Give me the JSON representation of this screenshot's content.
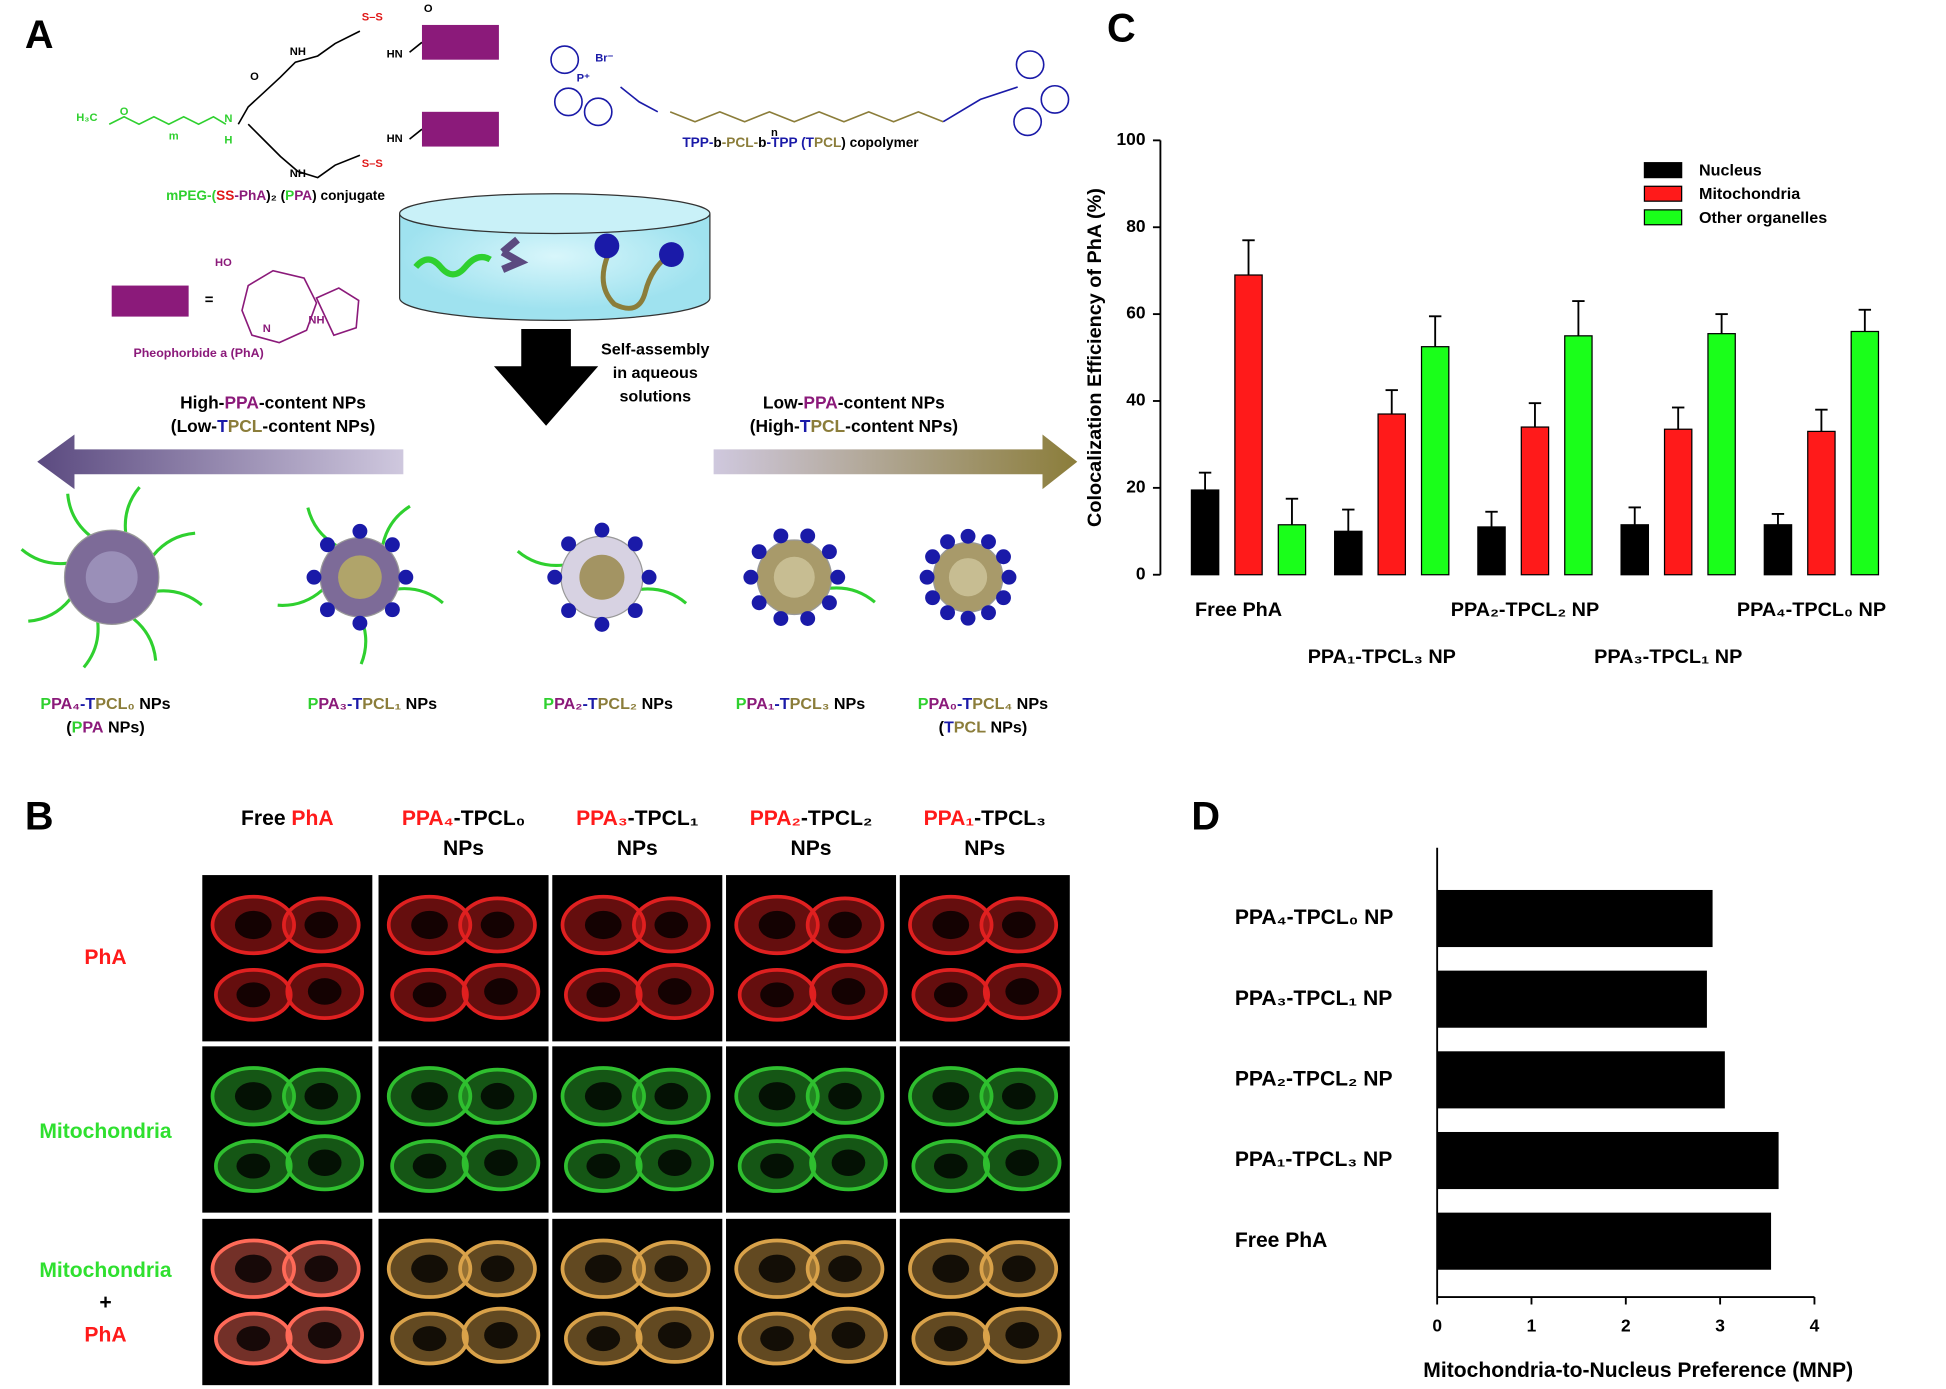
{
  "panel_labels": [
    "A",
    "B",
    "C",
    "D"
  ],
  "panel_a": {
    "ppa_conjugate": [
      {
        "text": "mPEG-(",
        "color": "#2fd02f"
      },
      {
        "text": "SS",
        "color": "#e01818"
      },
      {
        "text": "-PhA",
        "color": "#8b1a7a"
      },
      {
        "text": ")₂ (",
        "color": "#000000"
      },
      {
        "text": "P",
        "color": "#2fd02f"
      },
      {
        "text": "PA",
        "color": "#8b1a7a"
      },
      {
        "text": ") conjugate",
        "color": "#000000"
      }
    ],
    "tpcl_copolymer": [
      {
        "text": "TPP-",
        "color": "#1a1aa8"
      },
      {
        "text": "b",
        "color": "#000000"
      },
      {
        "text": "-PCL-",
        "color": "#8b7d3a"
      },
      {
        "text": "b",
        "color": "#000000"
      },
      {
        "text": "-TPP (",
        "color": "#1a1aa8"
      },
      {
        "text": "T",
        "color": "#1a1aa8"
      },
      {
        "text": "PCL",
        "color": "#8b7d3a"
      },
      {
        "text": ") copolymer",
        "color": "#000000"
      }
    ],
    "pha_name": "Pheophorbide a (PhA)",
    "equals": "=",
    "assembly": [
      "Self-assembly",
      "in aqueous",
      "solutions"
    ],
    "high_ppa": [
      [
        {
          "text": "High-",
          "color": "#000000"
        },
        {
          "text": "PPA",
          "color": "#8b1a7a"
        },
        {
          "text": "-content NPs",
          "color": "#000000"
        }
      ],
      [
        {
          "text": "(Low-",
          "color": "#000000"
        },
        {
          "text": "T",
          "color": "#1a1aa8"
        },
        {
          "text": "PCL",
          "color": "#8b7d3a"
        },
        {
          "text": "-content NPs)",
          "color": "#000000"
        }
      ]
    ],
    "low_ppa": [
      [
        {
          "text": "Low-",
          "color": "#000000"
        },
        {
          "text": "PPA",
          "color": "#8b1a7a"
        },
        {
          "text": "-content NPs",
          "color": "#000000"
        }
      ],
      [
        {
          "text": "(High-",
          "color": "#000000"
        },
        {
          "text": "T",
          "color": "#1a1aa8"
        },
        {
          "text": "PCL",
          "color": "#8b7d3a"
        },
        {
          "text": "-content NPs)",
          "color": "#000000"
        }
      ]
    ],
    "nanoparticles": [
      [
        [
          {
            "text": "P",
            "color": "#2fd02f"
          },
          {
            "text": "PA₄",
            "color": "#8b1a7a"
          },
          {
            "text": "-T",
            "color": "#1a1aa8"
          },
          {
            "text": "PCL₀",
            "color": "#8b7d3a"
          },
          {
            "text": " NPs",
            "color": "#000000"
          }
        ],
        [
          {
            "text": "(",
            "color": "#000000"
          },
          {
            "text": "P",
            "color": "#2fd02f"
          },
          {
            "text": "PA",
            "color": "#8b1a7a"
          },
          {
            "text": " NPs)",
            "color": "#000000"
          }
        ]
      ],
      [
        [
          {
            "text": "P",
            "color": "#2fd02f"
          },
          {
            "text": "PA₃",
            "color": "#8b1a7a"
          },
          {
            "text": "-T",
            "color": "#1a1aa8"
          },
          {
            "text": "PCL₁",
            "color": "#8b7d3a"
          },
          {
            "text": " NPs",
            "color": "#000000"
          }
        ]
      ],
      [
        [
          {
            "text": "P",
            "color": "#2fd02f"
          },
          {
            "text": "PA₂",
            "color": "#8b1a7a"
          },
          {
            "text": "-T",
            "color": "#1a1aa8"
          },
          {
            "text": "PCL₂",
            "color": "#8b7d3a"
          },
          {
            "text": " NPs",
            "color": "#000000"
          }
        ]
      ],
      [
        [
          {
            "text": "P",
            "color": "#2fd02f"
          },
          {
            "text": "PA₁",
            "color": "#8b1a7a"
          },
          {
            "text": "-T",
            "color": "#1a1aa8"
          },
          {
            "text": "PCL₃",
            "color": "#8b7d3a"
          },
          {
            "text": " NPs",
            "color": "#000000"
          }
        ]
      ],
      [
        [
          {
            "text": "P",
            "color": "#2fd02f"
          },
          {
            "text": "PA₀",
            "color": "#8b1a7a"
          },
          {
            "text": "-T",
            "color": "#1a1aa8"
          },
          {
            "text": "PCL₄",
            "color": "#8b7d3a"
          },
          {
            "text": " NPs",
            "color": "#000000"
          }
        ],
        [
          {
            "text": "(",
            "color": "#000000"
          },
          {
            "text": "T",
            "color": "#1a1aa8"
          },
          {
            "text": "PCL",
            "color": "#8b7d3a"
          },
          {
            "text": " NPs)",
            "color": "#000000"
          }
        ]
      ]
    ],
    "atom_labels": [
      {
        "text": "H₃C",
        "color": "#2fd02f"
      },
      {
        "text": "O",
        "color": "#2fd02f"
      },
      {
        "text": "m",
        "color": "#2fd02f"
      },
      {
        "text": "N",
        "color": "#2fd02f"
      },
      {
        "text": "H",
        "color": "#2fd02f"
      },
      {
        "text": "O",
        "color": "#000000"
      },
      {
        "text": "NH",
        "color": "#000000"
      },
      {
        "text": "S–S",
        "color": "#e01818"
      },
      {
        "text": "HN",
        "color": "#000000"
      },
      {
        "text": "O",
        "color": "#000000"
      },
      {
        "text": "NH",
        "color": "#000000"
      },
      {
        "text": "S–S",
        "color": "#e01818"
      },
      {
        "text": "HN",
        "color": "#000000"
      },
      {
        "text": "Br⁻",
        "color": "#1a1aa8"
      },
      {
        "text": "P⁺",
        "color": "#1a1aa8"
      },
      {
        "text": "n",
        "color": "#000000"
      },
      {
        "text": "HO",
        "color": "#8b1a7a"
      },
      {
        "text": "NH",
        "color": "#8b1a7a"
      },
      {
        "text": "N",
        "color": "#8b1a7a"
      }
    ]
  },
  "panel_b": {
    "columns": [
      [
        [
          {
            "text": "Free ",
            "color": "#000000"
          },
          {
            "text": "PhA",
            "color": "#ff1a1a"
          }
        ]
      ],
      [
        [
          {
            "text": "PPA₄",
            "color": "#ff1a1a"
          },
          {
            "text": "-TPCL₀",
            "color": "#000000"
          }
        ],
        [
          {
            "text": "NPs",
            "color": "#000000"
          }
        ]
      ],
      [
        [
          {
            "text": "PPA₃",
            "color": "#ff1a1a"
          },
          {
            "text": "-TPCL₁",
            "color": "#000000"
          }
        ],
        [
          {
            "text": "NPs",
            "color": "#000000"
          }
        ]
      ],
      [
        [
          {
            "text": "PPA₂",
            "color": "#ff1a1a"
          },
          {
            "text": "-TPCL₂",
            "color": "#000000"
          }
        ],
        [
          {
            "text": "NPs",
            "color": "#000000"
          }
        ]
      ],
      [
        [
          {
            "text": "PPA₁",
            "color": "#ff1a1a"
          },
          {
            "text": "-TPCL₃",
            "color": "#000000"
          }
        ],
        [
          {
            "text": "NPs",
            "color": "#000000"
          }
        ]
      ]
    ],
    "rows": [
      [
        [
          {
            "text": "PhA",
            "color": "#ff1a1a"
          }
        ]
      ],
      [
        [
          {
            "text": "Mitochondria",
            "color": "#2fe02f"
          }
        ]
      ],
      [
        [
          {
            "text": "Mitochondria",
            "color": "#2fe02f"
          }
        ],
        [
          {
            "text": "+",
            "color": "#000000"
          }
        ],
        [
          {
            "text": "PhA",
            "color": "#ff1a1a"
          }
        ]
      ]
    ]
  },
  "chart_data": [
    {
      "type": "bar",
      "y_label": "Colocalization Efficiency of PhA (%)",
      "categories": [
        "Free PhA",
        "PPA₁-TPCL₃ NP",
        "PPA₂-TPCL₂ NP",
        "PPA₃-TPCL₁ NP",
        "PPA₄-TPCL₀ NP"
      ],
      "series": [
        {
          "name": "Nucleus",
          "color": "#000000",
          "values": [
            19.5,
            10,
            11,
            11.5,
            11.5
          ],
          "errors": [
            4,
            5,
            3.5,
            4,
            2.5
          ]
        },
        {
          "name": "Mitochondria",
          "color": "#ff1a1a",
          "values": [
            69,
            37,
            34,
            33.5,
            33
          ],
          "errors": [
            8,
            5.5,
            5.5,
            5,
            5
          ]
        },
        {
          "name": "Other organelles",
          "color": "#1aff1a",
          "values": [
            11.5,
            52.5,
            55,
            55.5,
            56
          ],
          "errors": [
            6,
            7,
            8,
            4.5,
            5
          ]
        }
      ],
      "ylim": [
        0,
        100
      ],
      "yticks": [
        0,
        20,
        40,
        60,
        80,
        100
      ],
      "legend": "top-right"
    },
    {
      "type": "hbar",
      "x_label": "Mitochondria-to-Nucleus Preference (MNP)",
      "categories": [
        "PPA₄-TPCL₀ NP",
        "PPA₃-TPCL₁ NP",
        "PPA₂-TPCL₂ NP",
        "PPA₁-TPCL₃ NP",
        "Free PhA"
      ],
      "values": [
        2.92,
        2.86,
        3.05,
        3.62,
        3.54
      ],
      "color": "#000000",
      "xlim": [
        0,
        4
      ],
      "xticks": [
        0,
        1,
        2,
        3,
        4
      ]
    }
  ]
}
